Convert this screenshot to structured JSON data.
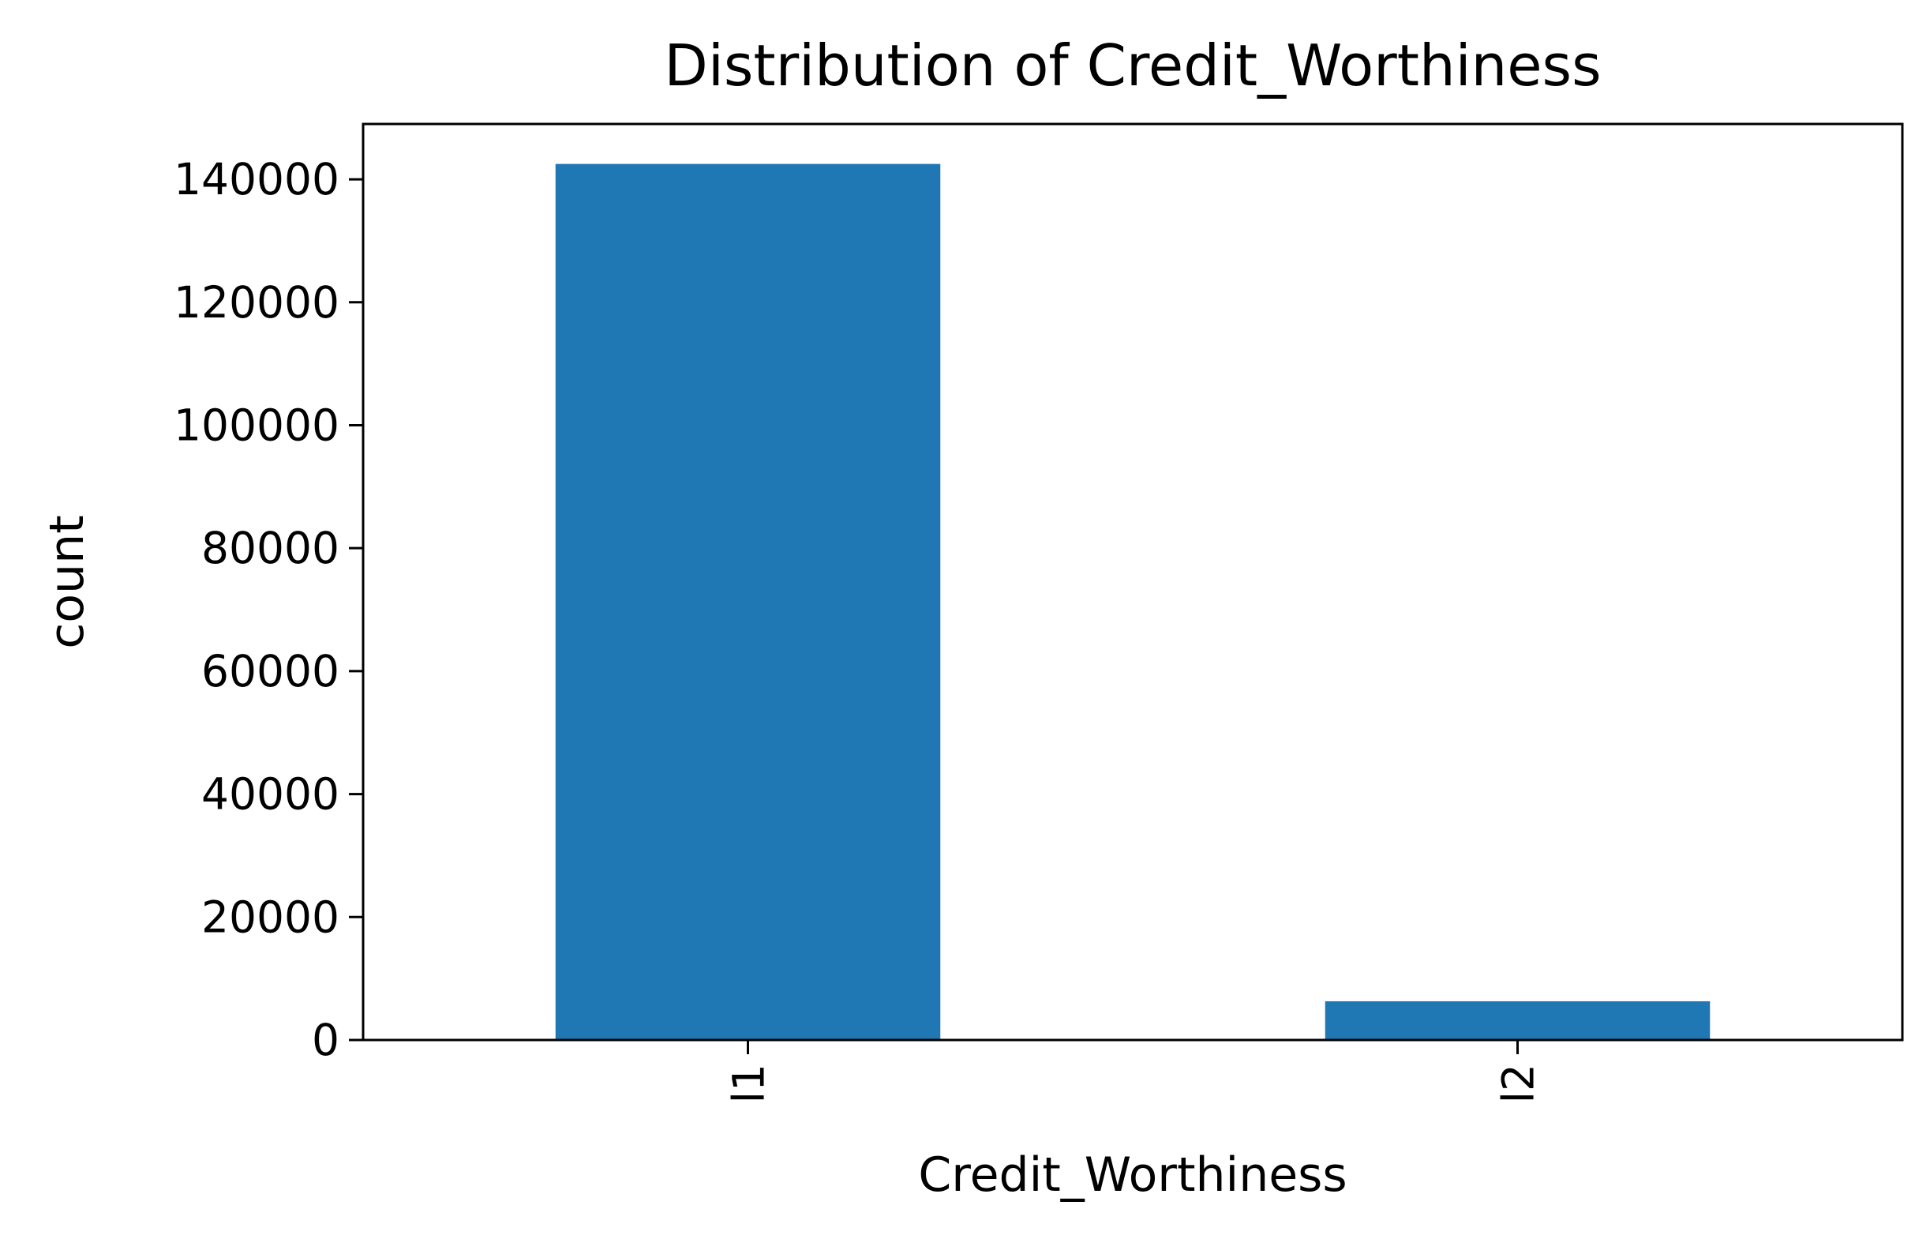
{
  "chart_data": {
    "type": "bar",
    "title": "Distribution of Credit_Worthiness",
    "xlabel": "Credit_Worthiness",
    "ylabel": "count",
    "categories": [
      "l1",
      "l2"
    ],
    "values": [
      142500,
      6300
    ],
    "ylim": [
      0,
      149000
    ],
    "yticks": [
      0,
      20000,
      40000,
      60000,
      80000,
      100000,
      120000,
      140000
    ],
    "ytick_labels": [
      "0",
      "20000",
      "40000",
      "60000",
      "80000",
      "100000",
      "120000",
      "140000"
    ],
    "xtick_rotation": "vertical",
    "grid": false,
    "bar_color": "#1f77b4"
  }
}
